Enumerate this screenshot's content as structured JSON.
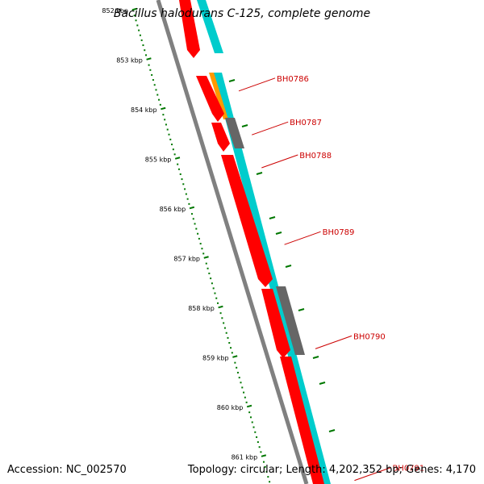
{
  "title": "Bacillus halodurans C-125, complete genome",
  "footer": {
    "accession": "Accession: NC_002570",
    "summary": "Topology: circular; Length: 4,202,352 bp; Genes: 4,170"
  },
  "ticks": [
    {
      "label": "852 kbp",
      "pos": 852
    },
    {
      "label": "853 kbp",
      "pos": 853
    },
    {
      "label": "854 kbp",
      "pos": 854
    },
    {
      "label": "855 kbp",
      "pos": 855
    },
    {
      "label": "856 kbp",
      "pos": 856
    },
    {
      "label": "857 kbp",
      "pos": 857
    },
    {
      "label": "858 kbp",
      "pos": 858
    },
    {
      "label": "859 kbp",
      "pos": 859
    },
    {
      "label": "860 kbp",
      "pos": 860
    },
    {
      "label": "861 kbp",
      "pos": 861
    }
  ],
  "genes": [
    {
      "label": "BH0786",
      "pos": 853.3
    },
    {
      "label": "BH0787",
      "pos": 854.1
    },
    {
      "label": "BH0788",
      "pos": 854.7
    },
    {
      "label": "BH0789",
      "pos": 856.1
    },
    {
      "label": "BH0790",
      "pos": 858.0
    },
    {
      "label": "BH0791",
      "pos": 860.4
    }
  ],
  "colors": {
    "forward": "#ff0000",
    "reverse": "#00cccc",
    "rna": "#ff9900",
    "other": "#666666",
    "backbone": "#808080",
    "ticks": "#007700",
    "label": "#cc0000"
  }
}
